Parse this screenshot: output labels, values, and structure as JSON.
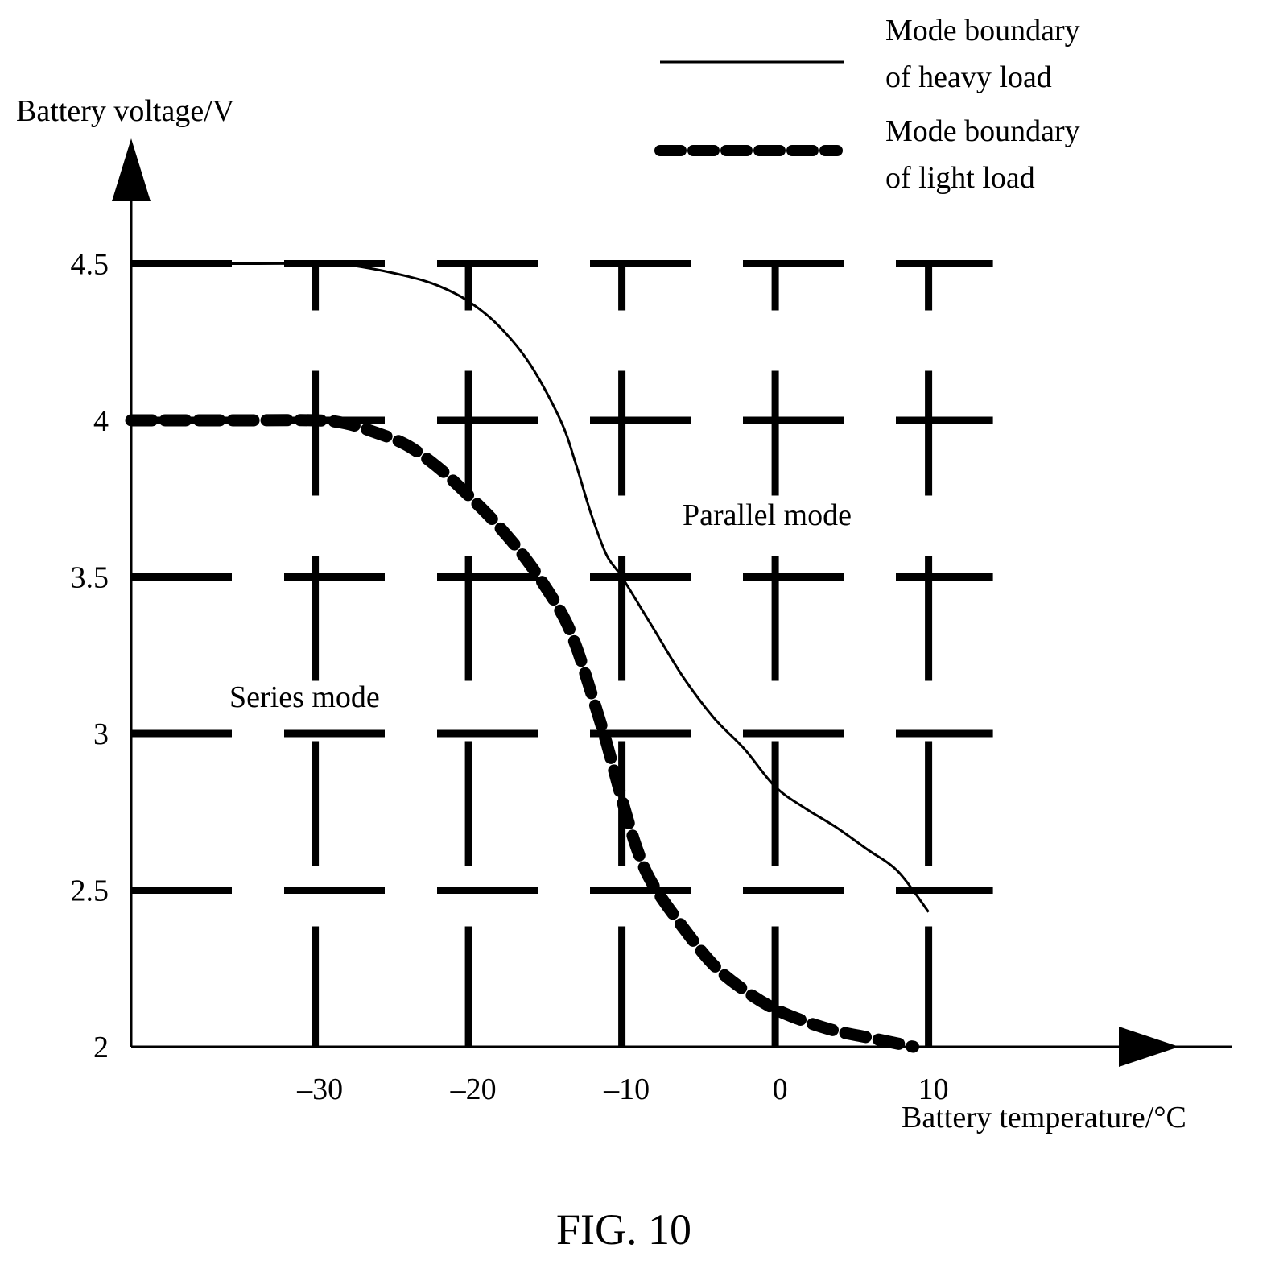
{
  "chart_data": {
    "type": "line",
    "caption": "FIG. 10",
    "ylabel": "Battery voltage/V",
    "xlabel": "Battery temperature/°C",
    "x_ticks": [
      {
        "value": -30,
        "label": "–30"
      },
      {
        "value": -20,
        "label": "–20"
      },
      {
        "value": -10,
        "label": "–10"
      },
      {
        "value": 0,
        "label": "0"
      },
      {
        "value": 10,
        "label": "10"
      }
    ],
    "y_ticks": [
      {
        "value": 2,
        "label": "2"
      },
      {
        "value": 2.5,
        "label": "2.5"
      },
      {
        "value": 3,
        "label": "3"
      },
      {
        "value": 3.5,
        "label": "3.5"
      },
      {
        "value": 4,
        "label": "4"
      },
      {
        "value": 4.5,
        "label": "4.5"
      }
    ],
    "xlim": [
      -42,
      28
    ],
    "ylim": [
      2,
      5
    ],
    "grid": true,
    "legend_position": "top-right",
    "series": [
      {
        "name": "Mode boundary of heavy load",
        "line_style": "solid",
        "x": [
          -42,
          -35,
          -29,
          -27,
          -24,
          -22,
          -20,
          -18,
          -16,
          -14,
          -13,
          -12,
          -11,
          -10,
          -8,
          -6,
          -4,
          -2,
          0,
          2,
          4,
          6,
          8,
          10
        ],
        "y": [
          4.5,
          4.5,
          4.5,
          4.49,
          4.46,
          4.43,
          4.38,
          4.3,
          4.18,
          4.0,
          3.86,
          3.7,
          3.57,
          3.5,
          3.34,
          3.18,
          3.05,
          2.95,
          2.83,
          2.76,
          2.7,
          2.63,
          2.56,
          2.43
        ]
      },
      {
        "name": "Mode boundary of light load",
        "line_style": "dashed-thick",
        "x": [
          -42,
          -35,
          -30,
          -28,
          -26,
          -24,
          -22,
          -20,
          -18,
          -16,
          -14,
          -13,
          -12,
          -11,
          -10,
          -9,
          -8,
          -6,
          -4,
          -2,
          0,
          2,
          4,
          6,
          8,
          9
        ],
        "y": [
          4.0,
          4.0,
          4.0,
          3.99,
          3.96,
          3.92,
          3.85,
          3.76,
          3.66,
          3.54,
          3.39,
          3.28,
          3.13,
          2.97,
          2.79,
          2.63,
          2.52,
          2.38,
          2.26,
          2.18,
          2.12,
          2.08,
          2.05,
          2.03,
          2.01,
          2.0
        ]
      }
    ],
    "annotations": [
      {
        "text": "Parallel mode",
        "x": 2,
        "y": 3.7
      },
      {
        "text": "Series mode",
        "x": -31,
        "y": 3.22
      }
    ],
    "legend": [
      {
        "label_line1": "Mode boundary",
        "label_line2": "of heavy load",
        "line_style": "solid"
      },
      {
        "label_line1": "Mode boundary",
        "label_line2": "of light load",
        "line_style": "dashed-thick"
      }
    ]
  }
}
